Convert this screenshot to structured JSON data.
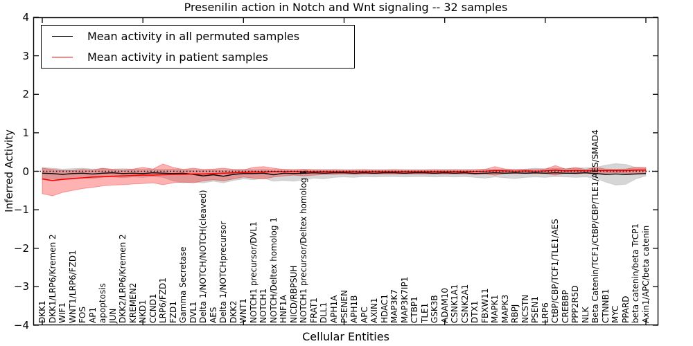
{
  "figure": {
    "title": "Presenilin action in Notch and Wnt signaling -- 32 samples",
    "xlabel": "Cellular Entities",
    "ylabel": "Inferred Activity",
    "background": "#ffffff"
  },
  "legend": {
    "items": [
      {
        "label": "Mean activity in all permuted samples",
        "color": "#000000"
      },
      {
        "label": "Mean activity in patient samples",
        "color": "#ff0000"
      }
    ]
  },
  "chart_data": {
    "type": "line",
    "title": "Presenilin action in Notch and Wnt signaling -- 32 samples",
    "xlabel": "Cellular Entities",
    "ylabel": "Inferred Activity",
    "ylim": [
      -4,
      4
    ],
    "yticks": [
      4,
      3,
      2,
      1,
      0,
      -1,
      -2,
      -3,
      -4
    ],
    "xtick_rotation": 90,
    "grid": false,
    "legend_position": "upper left",
    "reference_line": {
      "y": 0,
      "style": "dotted",
      "color": "#000000"
    },
    "categories": [
      "DKK1",
      "DKK1/LRP6/Kremen 2",
      "WIF1",
      "WNT1/LRP6/FZD1",
      "FOS",
      "AP1",
      "apoptosis",
      "JUN",
      "DKK2/LRP6/Kremen 2",
      "KREMEN2",
      "NKD1",
      "CCND1",
      "LRP6/FZD1",
      "FZD1",
      "Gamma Secretase",
      "DVL1",
      "Delta 1/NOTCH/NOTCH(cleaved)",
      "AES",
      "Delta 1/NOTCHprecursor",
      "DKK2",
      "WNT1",
      "NOTCH1 precursor/DVL1",
      "NOTCH1",
      "NOTCH/Deltex homolog 1",
      "HNF1A",
      "NICD/RBPSUH",
      "NOTCH1 precursor/Deltex homolog 1",
      "FRAT1",
      "DLL1",
      "APH1A",
      "PSENEN",
      "APH1B",
      "APC",
      "AXIN1",
      "HDAC1",
      "MAP3K7",
      "MAP3K7IP1",
      "CTBP1",
      "TLE1",
      "GSK3B",
      "ADAM10",
      "CSNK1A1",
      "CSNK2A1",
      "DTX1",
      "FBXW11",
      "MAPK1",
      "MAPK3",
      "RBPJ",
      "NCSTN",
      "PSEN1",
      "LRP6",
      "CtBP/CBP/TCF1/TLE1/AES",
      "CREBBP",
      "PPP2R5D",
      "NLK",
      "Beta Catenin/TCF1/CtBP/CBP/TLE1/AES/SMAD4",
      "CTNNB1",
      "MYC",
      "PPARD",
      "beta catenin/beta TrCP1",
      "Axin1/APC/beta catenin"
    ],
    "series": [
      {
        "name": "Mean activity in all permuted samples",
        "color": "#000000",
        "line_style": "solid",
        "values": [
          -0.05,
          -0.06,
          -0.08,
          -0.06,
          -0.05,
          -0.07,
          -0.05,
          -0.04,
          -0.06,
          -0.05,
          -0.06,
          -0.04,
          -0.05,
          -0.06,
          -0.05,
          -0.08,
          -0.12,
          -0.09,
          -0.13,
          -0.08,
          -0.06,
          -0.06,
          -0.05,
          -0.09,
          -0.05,
          -0.06,
          -0.05,
          -0.04,
          -0.05,
          -0.04,
          -0.04,
          -0.05,
          -0.04,
          -0.05,
          -0.04,
          -0.04,
          -0.05,
          -0.04,
          -0.04,
          -0.05,
          -0.04,
          -0.05,
          -0.04,
          -0.06,
          -0.05,
          -0.04,
          -0.05,
          -0.04,
          -0.05,
          -0.04,
          -0.05,
          -0.04,
          -0.05,
          -0.05,
          -0.04,
          -0.06,
          -0.08,
          -0.07,
          -0.08,
          -0.07,
          -0.06
        ],
        "band": {
          "hi": [
            0.1,
            0.08,
            0.06,
            0.07,
            0.08,
            0.06,
            0.07,
            0.06,
            0.07,
            0.06,
            0.05,
            0.06,
            0.05,
            0.06,
            0.05,
            0.04,
            0.03,
            0.04,
            0.03,
            0.04,
            0.05,
            0.04,
            0.05,
            0.04,
            0.05,
            0.04,
            0.05,
            0.04,
            0.05,
            0.04,
            0.04,
            0.04,
            0.04,
            0.04,
            0.04,
            0.04,
            0.04,
            0.04,
            0.04,
            0.04,
            0.05,
            0.04,
            0.05,
            0.04,
            0.06,
            0.05,
            0.06,
            0.05,
            0.06,
            0.08,
            0.07,
            0.08,
            0.07,
            0.08,
            0.09,
            0.1,
            0.16,
            0.2,
            0.18,
            0.1,
            0.08
          ],
          "lo": [
            -0.18,
            -0.2,
            -0.22,
            -0.18,
            -0.17,
            -0.19,
            -0.16,
            -0.15,
            -0.17,
            -0.15,
            -0.16,
            -0.14,
            -0.16,
            -0.25,
            -0.3,
            -0.28,
            -0.3,
            -0.26,
            -0.3,
            -0.24,
            -0.2,
            -0.22,
            -0.18,
            -0.26,
            -0.24,
            -0.26,
            -0.22,
            -0.18,
            -0.2,
            -0.16,
            -0.15,
            -0.16,
            -0.14,
            -0.15,
            -0.14,
            -0.14,
            -0.15,
            -0.14,
            -0.14,
            -0.15,
            -0.14,
            -0.15,
            -0.14,
            -0.16,
            -0.18,
            -0.15,
            -0.17,
            -0.19,
            -0.16,
            -0.15,
            -0.16,
            -0.14,
            -0.15,
            -0.16,
            -0.15,
            -0.18,
            -0.28,
            -0.36,
            -0.34,
            -0.2,
            -0.12
          ],
          "fill": "rgba(0,0,0,0.16)",
          "edge": "rgba(0,0,0,0.10)"
        }
      },
      {
        "name": "Mean activity in patient samples",
        "color": "#ff0000",
        "line_style": "solid",
        "values": [
          -0.2,
          -0.24,
          -0.21,
          -0.19,
          -0.17,
          -0.15,
          -0.14,
          -0.13,
          -0.12,
          -0.11,
          -0.1,
          -0.1,
          -0.09,
          -0.08,
          -0.08,
          -0.07,
          -0.07,
          -0.06,
          -0.05,
          -0.04,
          -0.03,
          -0.02,
          -0.02,
          -0.01,
          -0.01,
          -0.01,
          -0.01,
          -0.01,
          -0.01,
          -0.01,
          -0.01,
          -0.01,
          -0.01,
          -0.01,
          -0.01,
          -0.01,
          -0.01,
          -0.01,
          -0.01,
          -0.01,
          -0.01,
          -0.01,
          -0.01,
          -0.01,
          0,
          0.02,
          0.01,
          0,
          0.01,
          0,
          0.01,
          0.03,
          0.01,
          0.02,
          0.01,
          0.02,
          0.02,
          0.02,
          0.02,
          0.03,
          0.03
        ],
        "band": {
          "hi": [
            0.08,
            0.05,
            0.02,
            0.02,
            0.05,
            0.03,
            0.08,
            0.05,
            0.03,
            0.06,
            0.1,
            0.06,
            0.19,
            0.1,
            0.05,
            0.08,
            0.05,
            0.06,
            0.08,
            0.05,
            0.04,
            0.1,
            0.12,
            0.08,
            0.05,
            0.04,
            0.05,
            0.04,
            0.03,
            0.04,
            0.03,
            0.03,
            0.04,
            0.03,
            0.03,
            0.04,
            0.03,
            0.03,
            0.03,
            0.04,
            0.03,
            0.04,
            0.03,
            0.04,
            0.05,
            0.12,
            0.06,
            0.04,
            0.05,
            0.04,
            0.06,
            0.15,
            0.06,
            0.1,
            0.05,
            0.1,
            0.06,
            0.05,
            0.06,
            0.1,
            0.1
          ],
          "lo": [
            -0.58,
            -0.64,
            -0.55,
            -0.5,
            -0.45,
            -0.42,
            -0.38,
            -0.36,
            -0.35,
            -0.33,
            -0.32,
            -0.3,
            -0.35,
            -0.3,
            -0.28,
            -0.3,
            -0.25,
            -0.22,
            -0.25,
            -0.2,
            -0.15,
            -0.18,
            -0.2,
            -0.15,
            -0.12,
            -0.1,
            -0.12,
            -0.1,
            -0.08,
            -0.08,
            -0.07,
            -0.08,
            -0.07,
            -0.07,
            -0.07,
            -0.07,
            -0.07,
            -0.07,
            -0.07,
            -0.07,
            -0.07,
            -0.07,
            -0.07,
            -0.08,
            -0.07,
            -0.1,
            -0.06,
            -0.06,
            -0.06,
            -0.06,
            -0.06,
            -0.1,
            -0.05,
            -0.07,
            -0.05,
            -0.07,
            -0.05,
            -0.04,
            -0.05,
            -0.06,
            -0.06
          ],
          "fill": "rgba(255,0,0,0.30)",
          "edge": "rgba(215,0,0,0.30)"
        }
      }
    ]
  }
}
